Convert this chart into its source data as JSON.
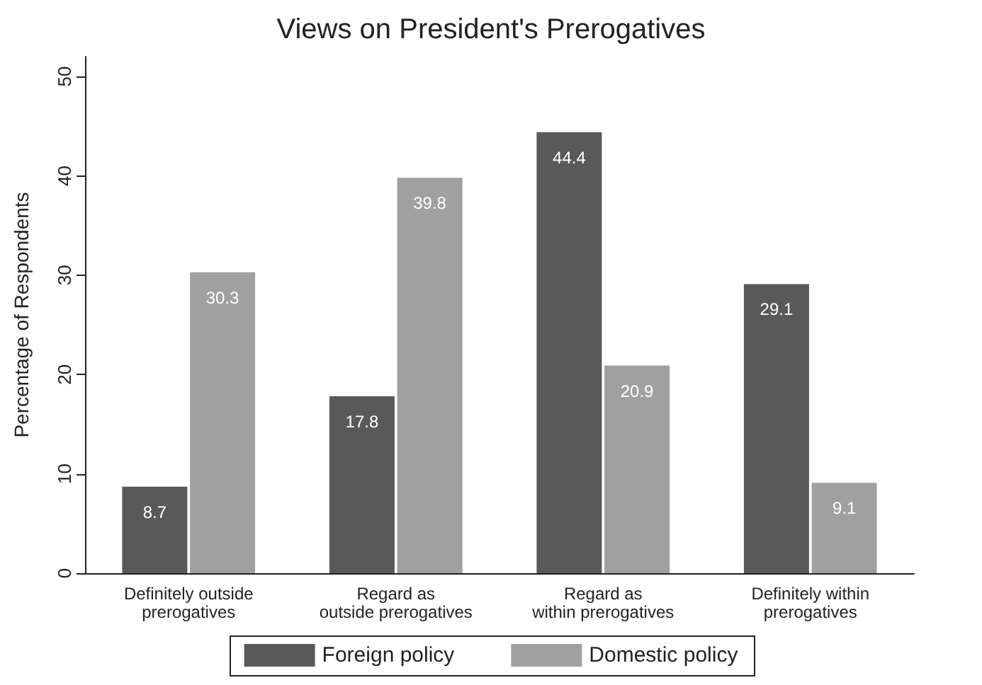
{
  "chart_data": {
    "type": "bar",
    "title": "Views on President's Prerogatives",
    "ylabel": "Percentage of Respondents",
    "categories": [
      "Definitely outside\nprerogatives",
      "Regard as\noutside prerogatives",
      "Regard as\nwithin prerogatives",
      "Definitely within\nprerogatives"
    ],
    "series": [
      {
        "name": "Foreign policy",
        "color": "#595959",
        "values": [
          8.7,
          17.8,
          44.4,
          29.1
        ]
      },
      {
        "name": "Domestic policy",
        "color": "#a0a0a0",
        "values": [
          30.3,
          39.8,
          20.9,
          9.1
        ]
      }
    ],
    "ylim": [
      0,
      52
    ],
    "yticks": [
      0,
      10,
      20,
      30,
      40,
      50
    ],
    "data_labels": true,
    "grid": false,
    "legend": "bottom"
  }
}
